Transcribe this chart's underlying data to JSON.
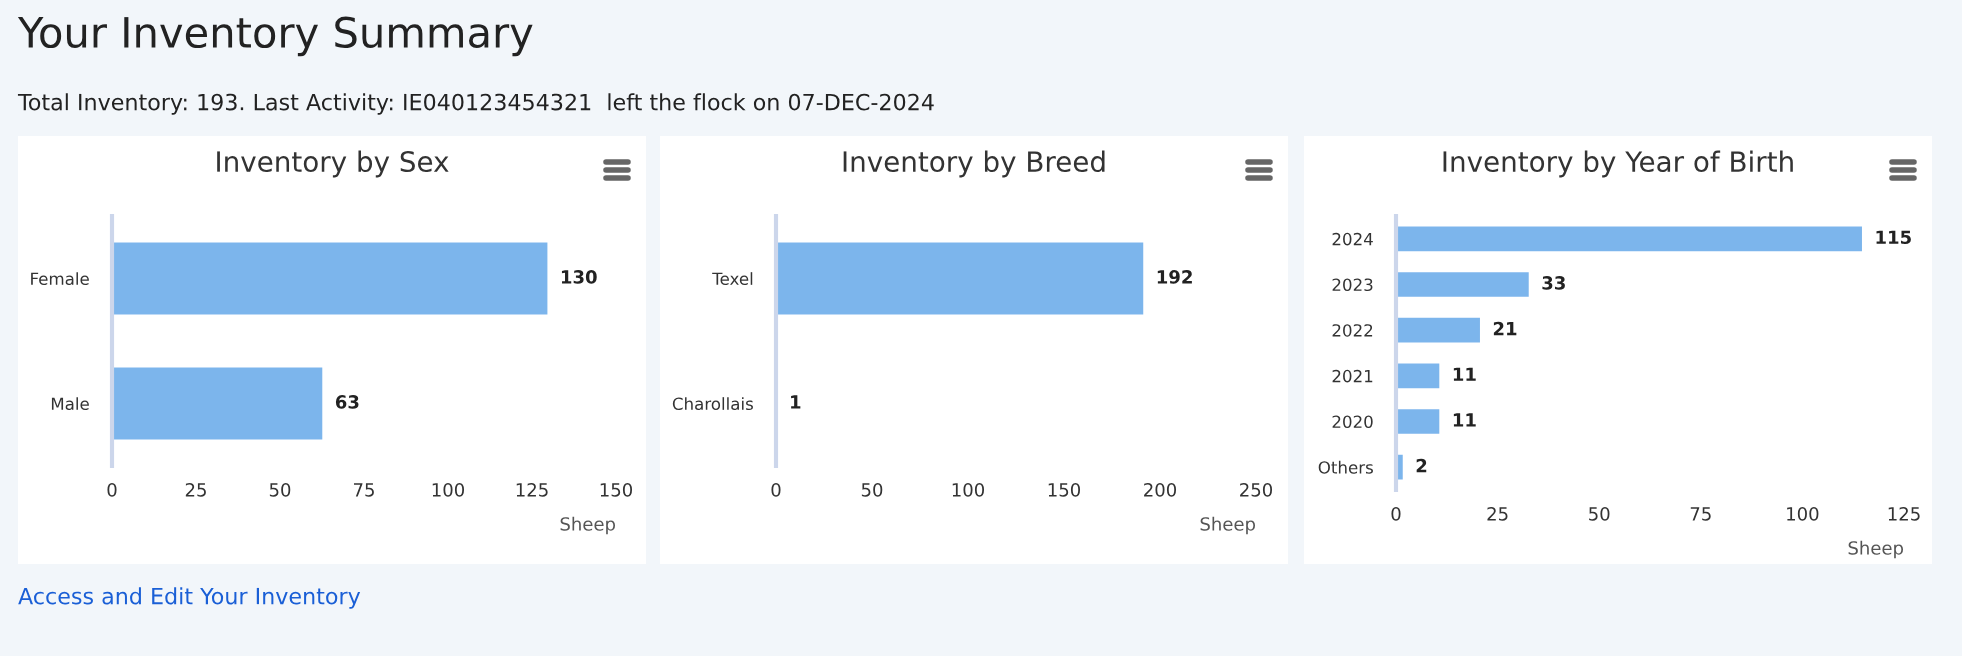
{
  "chart_data": [
    {
      "type": "other",
      "title": "Your Inventory Summary",
      "subtitle": "Total Inventory: 193. Last Activity: IE040123454321  left the flock on 07-DEC-2024",
      "annotations": [
        "Access and Edit Your Inventory"
      ]
    },
    {
      "type": "bar",
      "orientation": "horizontal",
      "title": "Inventory by Sex",
      "xlabel": "Sheep",
      "categories": [
        "Female",
        "Male"
      ],
      "values": [
        130,
        63
      ],
      "color": "#7cb5ec",
      "xlim": [
        0,
        150
      ],
      "xticks": [
        0,
        25,
        50,
        75,
        100,
        125,
        150
      ],
      "data_labels": true,
      "grid": false,
      "legend": false
    },
    {
      "type": "bar",
      "orientation": "horizontal",
      "title": "Inventory by Breed",
      "xlabel": "Sheep",
      "categories": [
        "Texel",
        "Charollais"
      ],
      "values": [
        192,
        1
      ],
      "color": "#7cb5ec",
      "xlim": [
        0,
        250
      ],
      "xticks": [
        0,
        50,
        100,
        150,
        200,
        250
      ],
      "data_labels": true,
      "grid": false,
      "legend": false
    },
    {
      "type": "bar",
      "orientation": "horizontal",
      "title": "Inventory by Year of Birth",
      "xlabel": "Sheep",
      "categories": [
        "2024",
        "2023",
        "2022",
        "2021",
        "2020",
        "Others"
      ],
      "values": [
        115,
        33,
        21,
        11,
        11,
        2
      ],
      "color": "#7cb5ec",
      "xlim": [
        0,
        125
      ],
      "xticks": [
        0,
        25,
        50,
        75,
        100,
        125
      ],
      "data_labels": true,
      "grid": false,
      "legend": false
    }
  ]
}
